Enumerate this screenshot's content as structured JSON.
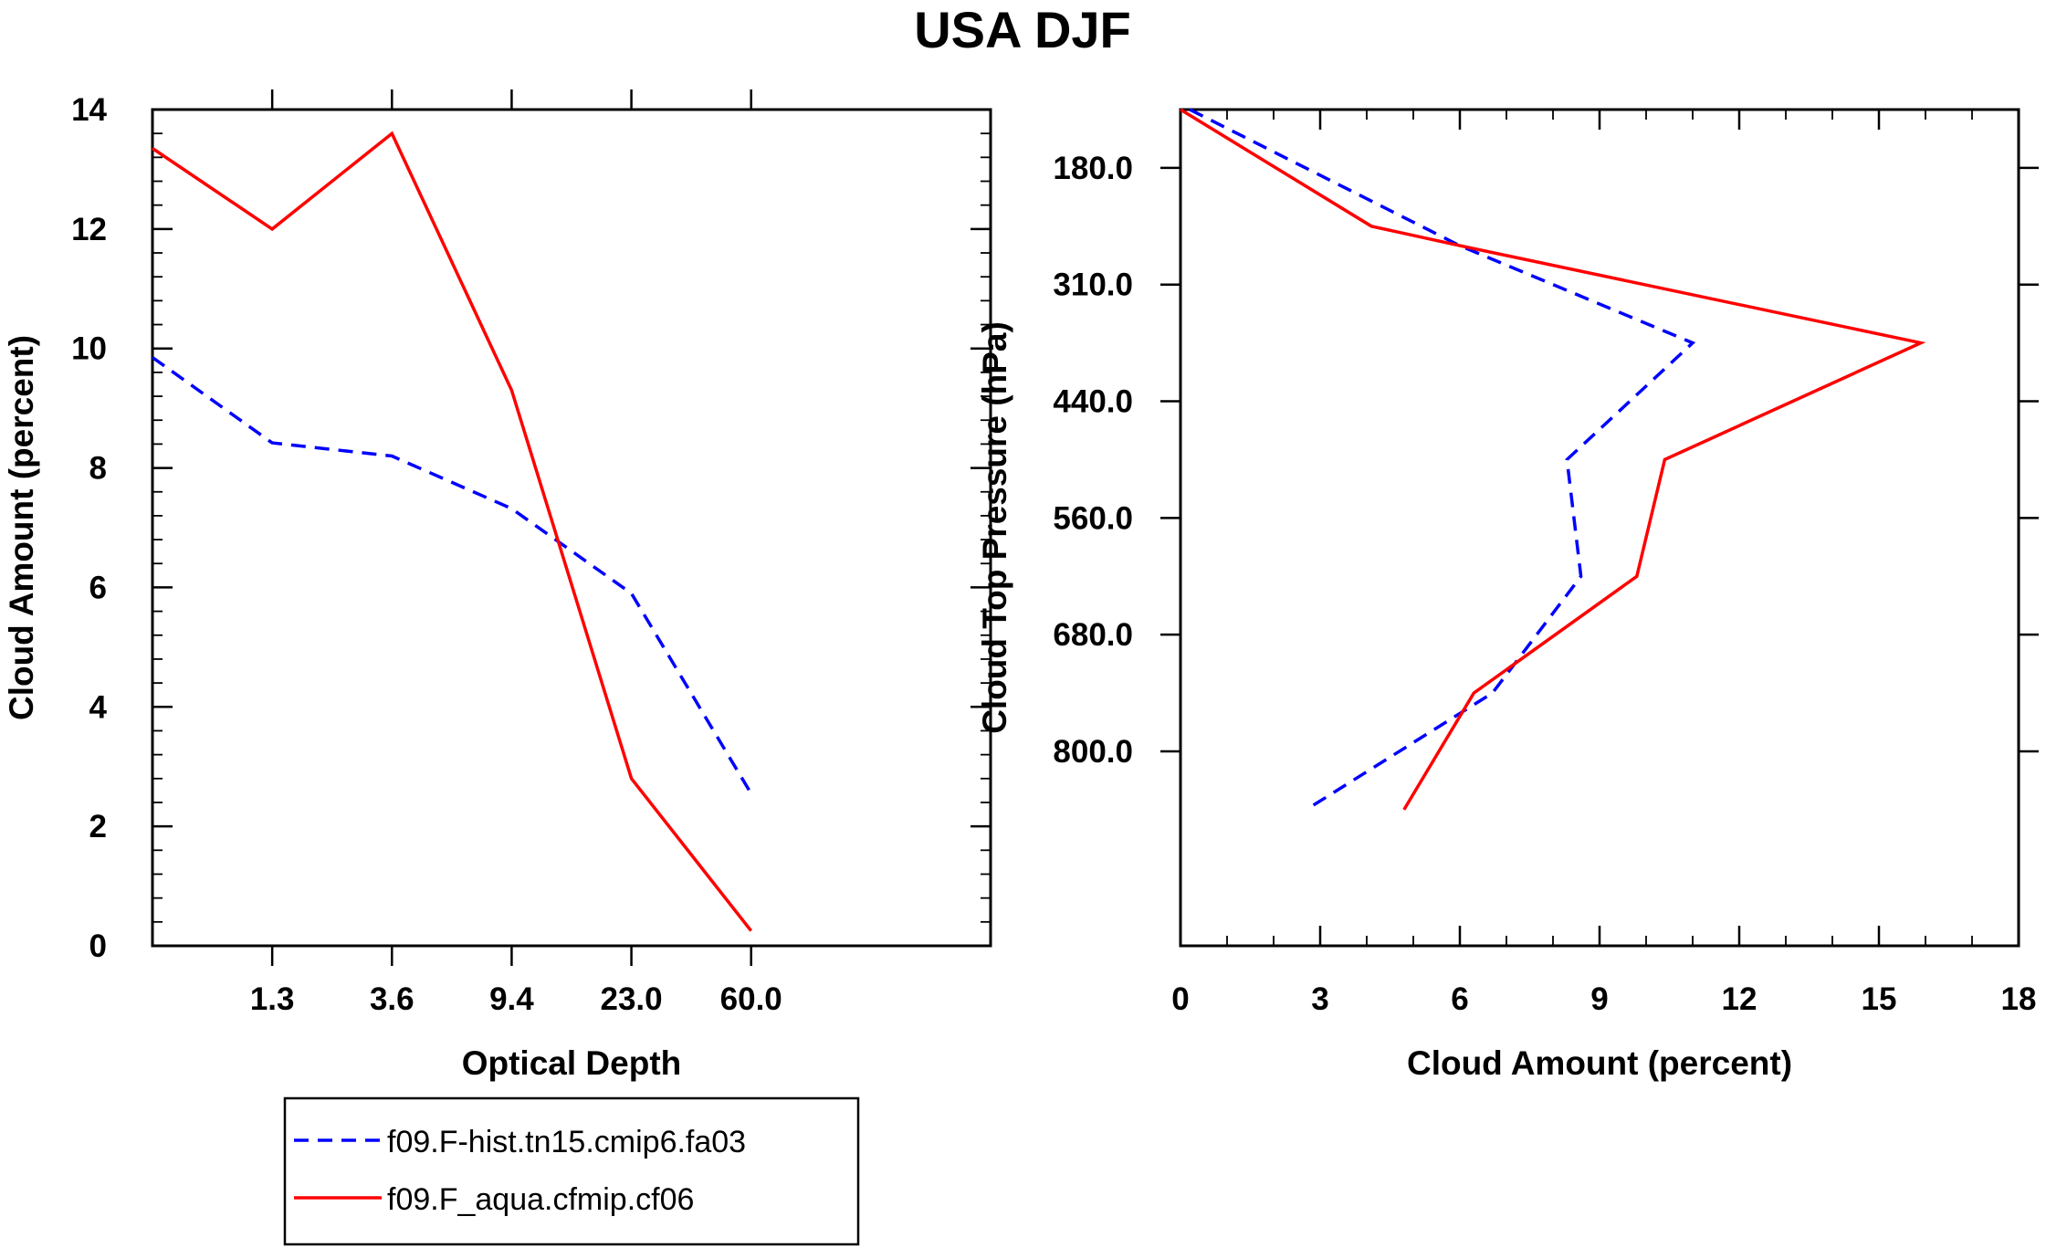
{
  "title": "USA DJF",
  "chart_data": [
    {
      "type": "line",
      "xlabel": "Optical Depth",
      "ylabel": "Cloud Amount (percent)",
      "ylim": [
        0,
        14
      ],
      "yticks": [
        "0",
        "2",
        "4",
        "6",
        "8",
        "10",
        "12",
        "14"
      ],
      "xticks": [
        "1.3",
        "3.6",
        "9.4",
        "23.0",
        "60.0"
      ],
      "x_bins": 7,
      "series": [
        {
          "name": "f09.F-hist.tn15.cmip6.fa03",
          "color": "#0000ff",
          "dash": "dashed",
          "values": [
            9.85,
            8.42,
            8.2,
            7.32,
            5.9,
            2.55
          ]
        },
        {
          "name": "f09.F_aqua.cfmip.cf06",
          "color": "#ff0000",
          "dash": "solid",
          "values": [
            13.35,
            12.0,
            13.6,
            9.3,
            2.8,
            0.25
          ]
        }
      ]
    },
    {
      "type": "line",
      "xlabel": "Cloud Amount (percent)",
      "ylabel": "Cloud Top Pressure (hPa)",
      "xlim": [
        0,
        18
      ],
      "xticks": [
        "0",
        "3",
        "6",
        "9",
        "12",
        "15",
        "18"
      ],
      "ylim": [
        60,
        920
      ],
      "yticks": [
        "180.0",
        "310.0",
        "440.0",
        "560.0",
        "680.0",
        "800.0"
      ],
      "ytick_values": [
        120,
        240,
        360,
        480,
        600,
        720
      ],
      "series": [
        {
          "name": "f09.F-hist.tn15.cmip6.fa03",
          "color": "#0000ff",
          "dash": "dashed",
          "points": [
            [
              0.2,
              60
            ],
            [
              6.0,
              200
            ],
            [
              11.0,
              300
            ],
            [
              8.3,
              420
            ],
            [
              8.6,
              540
            ],
            [
              6.7,
              660
            ],
            [
              2.7,
              780
            ]
          ]
        },
        {
          "name": "f09.F_aqua.cfmip.cf06",
          "color": "#ff0000",
          "dash": "solid",
          "points": [
            [
              0.0,
              60
            ],
            [
              4.1,
              180
            ],
            [
              6.0,
              200
            ],
            [
              15.9,
              300
            ],
            [
              10.4,
              420
            ],
            [
              9.8,
              540
            ],
            [
              6.3,
              660
            ],
            [
              4.8,
              780
            ]
          ]
        }
      ]
    }
  ],
  "legend": {
    "items": [
      {
        "label": "f09.F-hist.tn15.cmip6.fa03",
        "color": "#0000ff",
        "dash": "dashed"
      },
      {
        "label": "f09.F_aqua.cfmip.cf06",
        "color": "#ff0000",
        "dash": "solid"
      }
    ]
  }
}
